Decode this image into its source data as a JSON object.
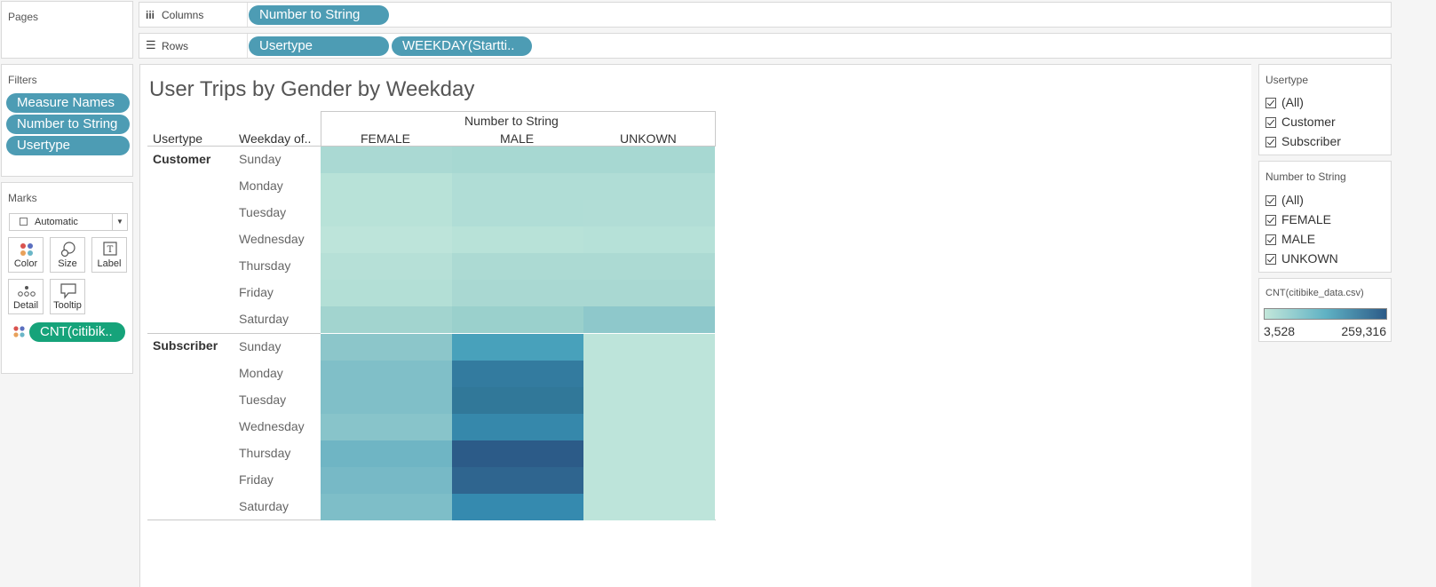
{
  "pages": {
    "title": "Pages"
  },
  "columns_shelf": {
    "label": "Columns",
    "pills": [
      "Number to String"
    ]
  },
  "rows_shelf": {
    "label": "Rows",
    "pills": [
      "Usertype",
      "WEEKDAY(Startti.."
    ]
  },
  "filters": {
    "title": "Filters",
    "pills": [
      "Measure Names",
      "Number to String",
      "Usertype"
    ]
  },
  "marks": {
    "title": "Marks",
    "type": "Automatic",
    "cards": [
      "Color",
      "Size",
      "Label",
      "Detail",
      "Tooltip"
    ],
    "field_pill": "CNT(citibik.."
  },
  "view": {
    "title": "User Trips by Gender by Weekday",
    "col_header_title": "Number to String",
    "row_header_1": "Usertype",
    "row_header_2": "Weekday of..",
    "columns": [
      "FEMALE",
      "MALE",
      "UNKOWN"
    ],
    "groups": [
      "Customer",
      "Subscriber"
    ],
    "days": [
      "Sunday",
      "Monday",
      "Tuesday",
      "Wednesday",
      "Thursday",
      "Friday",
      "Saturday"
    ],
    "cell_colors": [
      [
        "#aad9d3",
        "#a7d8d2",
        "#a7d8d2"
      ],
      [
        "#b8e2d8",
        "#b0ddd6",
        "#b0ddd6"
      ],
      [
        "#b8e2d8",
        "#b0ddd6",
        "#b1ddd6"
      ],
      [
        "#bde4da",
        "#b8e2d8",
        "#b6e1d8"
      ],
      [
        "#b6e0d7",
        "#acdad3",
        "#acdad3"
      ],
      [
        "#b3dfd6",
        "#a9d8d2",
        "#a9d8d2"
      ],
      [
        "#a2d4cf",
        "#9ad0cc",
        "#8ec8cb"
      ],
      [
        "#8cc6ca",
        "#48a1bb",
        "#bde4da"
      ],
      [
        "#80bfc8",
        "#337b9f",
        "#bde4da"
      ],
      [
        "#80bfc8",
        "#317899",
        "#bde4da"
      ],
      [
        "#88c4ca",
        "#3688ab",
        "#bde4da"
      ],
      [
        "#6fb5c4",
        "#2c5b88",
        "#bde4da"
      ],
      [
        "#77b9c6",
        "#2f658f",
        "#bde4da"
      ],
      [
        "#7ebec8",
        "#358aaf",
        "#bde4da"
      ]
    ]
  },
  "legend_usertype": {
    "title": "Usertype",
    "items": [
      "(All)",
      "Customer",
      "Subscriber"
    ]
  },
  "legend_number": {
    "title": "Number to String",
    "items": [
      "(All)",
      "FEMALE",
      "MALE",
      "UNKOWN"
    ]
  },
  "legend_color": {
    "title": "CNT(citibike_data.csv)",
    "min": "3,528",
    "max": "259,316"
  }
}
